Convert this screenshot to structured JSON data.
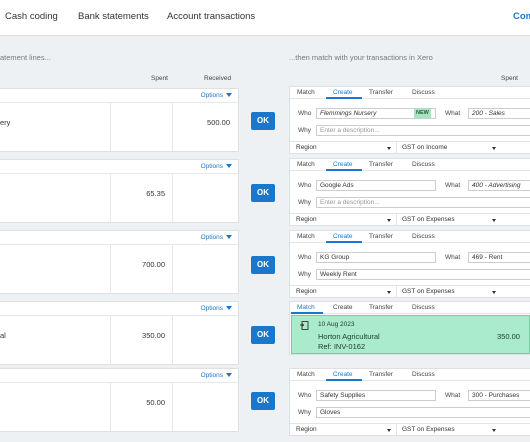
{
  "nav": {
    "items": [
      "Cash coding",
      "Bank statements",
      "Account transactions"
    ],
    "more": "Com"
  },
  "left_header": "atement lines...",
  "right_header": "...then match with your transactions in Xero",
  "columns": {
    "spent": "Spent",
    "received": "Received",
    "right_spent": "Spent"
  },
  "options_label": "Options",
  "ok_label": "OK",
  "tabs": [
    "Match",
    "Create",
    "Transfer",
    "Discuss"
  ],
  "labels": {
    "who": "Who",
    "what": "What",
    "why": "Why",
    "region": "Region"
  },
  "statement_lines": [
    {
      "desc": "ery",
      "spent": "",
      "received": "500.00"
    },
    {
      "desc": "",
      "spent": "65.35",
      "received": ""
    },
    {
      "desc": "",
      "spent": "700.00",
      "received": ""
    },
    {
      "desc": "al",
      "spent": "350.00",
      "received": ""
    },
    {
      "desc": "",
      "spent": "50.00",
      "received": ""
    }
  ],
  "right_panels": [
    {
      "type": "create",
      "who": "Flemmings Nursery",
      "badge": "NEW",
      "what": "200 - Sales",
      "why": "",
      "why_placeholder": "Enter a description...",
      "tax": "GST on Income"
    },
    {
      "type": "create",
      "who": "Google Ads",
      "what": "400 - Advertising",
      "why": "",
      "why_placeholder": "Enter a description...",
      "tax": "GST on Expenses"
    },
    {
      "type": "create",
      "who": "KG Group",
      "what": "469 - Rent",
      "why": "Weekly Rent",
      "tax": "GST on Expenses"
    },
    {
      "type": "match",
      "date": "10 Aug 2023",
      "name": "Horton Agricultural",
      "ref": "Ref: INV-0162",
      "amount": "350.00"
    },
    {
      "type": "create",
      "who": "Safety Supplies",
      "what": "300 - Purchases",
      "why": "Gloves",
      "tax": "GST on Expenses"
    }
  ],
  "colors": {
    "accent": "#1a77c9",
    "match_bg": "#aaebcc",
    "badge_bg": "#a9e4c0"
  }
}
